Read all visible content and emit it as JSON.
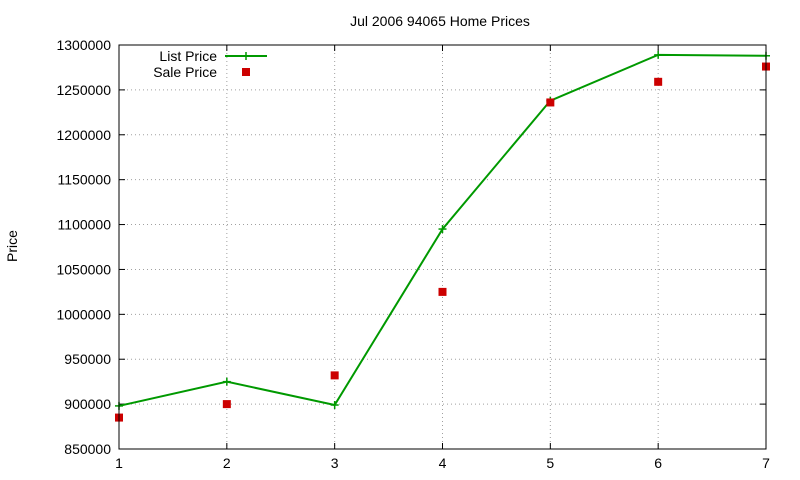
{
  "chart_data": {
    "type": "line",
    "title": "Jul 2006 94065 Home Prices",
    "ylabel": "Price",
    "xlabel": "",
    "x": [
      1,
      2,
      3,
      4,
      5,
      6,
      7
    ],
    "xticks": [
      "1",
      "2",
      "3",
      "4",
      "5",
      "6",
      "7"
    ],
    "yticks": [
      "850000",
      "900000",
      "950000",
      "1000000",
      "1050000",
      "1100000",
      "1150000",
      "1200000",
      "1250000",
      "1300000"
    ],
    "xlim": [
      1,
      7
    ],
    "ylim": [
      850000,
      1300000
    ],
    "grid": true,
    "legend_position": "top-left",
    "series": [
      {
        "name": "List Price",
        "style": "line+cross",
        "color": "#009900",
        "values": [
          898000,
          925000,
          899000,
          1095000,
          1238000,
          1289000,
          1288000
        ]
      },
      {
        "name": "Sale Price",
        "style": "square",
        "color": "#cc0000",
        "values": [
          885000,
          900000,
          932000,
          1025000,
          1236000,
          1259000,
          1276000
        ]
      }
    ]
  }
}
